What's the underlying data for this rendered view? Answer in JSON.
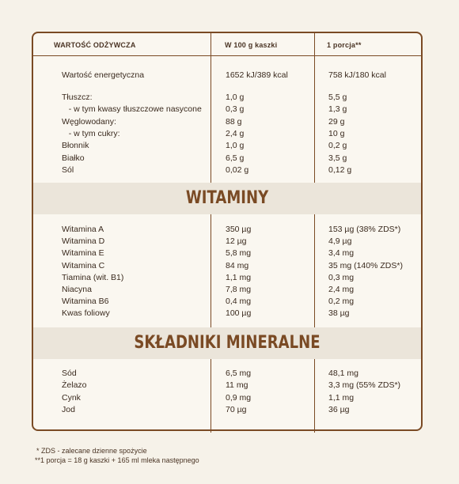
{
  "header": {
    "col_name": "WARTOŚĆ ODŻYWCZA",
    "col_100g": "W 100 g kaszki",
    "col_portion": "1 porcja**"
  },
  "energy": {
    "label": "Wartość energetyczna",
    "v100": "1652 kJ/389 kcal",
    "vp": "758 kJ/180 kcal"
  },
  "nutrients": [
    {
      "label": "Tłuszcz:",
      "v100": "1,0 g",
      "vp": "5,5 g"
    },
    {
      "label": "   - w tym kwasy tłuszczowe nasycone",
      "v100": "0,3 g",
      "vp": "1,3 g"
    },
    {
      "label": "Węglowodany:",
      "v100": "88 g",
      "vp": "29 g"
    },
    {
      "label": "   - w tym cukry:",
      "v100": "2,4 g",
      "vp": "10 g"
    },
    {
      "label": "Błonnik",
      "v100": "1,0 g",
      "vp": "0,2 g"
    },
    {
      "label": "Białko",
      "v100": "6,5 g",
      "vp": "3,5 g"
    },
    {
      "label": "Sól",
      "v100": "0,02 g",
      "vp": "0,12 g"
    }
  ],
  "vitamins_title": "WITAMINY",
  "vitamins": [
    {
      "label": "Witamina A",
      "v100": "350 µg",
      "vp": "153 µg (38% ZDS*)"
    },
    {
      "label": "Witamina D",
      "v100": "12 µg",
      "vp": "4,9 µg"
    },
    {
      "label": "Witamina E",
      "v100": "5,8 mg",
      "vp": "3,4 mg"
    },
    {
      "label": "Witamina C",
      "v100": "84 mg",
      "vp": "35 mg (140% ZDS*)"
    },
    {
      "label": "Tiamina (wit. B1)",
      "v100": "1,1 mg",
      "vp": "0,3 mg"
    },
    {
      "label": "Niacyna",
      "v100": "7,8 mg",
      "vp": "2,4 mg"
    },
    {
      "label": "Witamina B6",
      "v100": "0,4 mg",
      "vp": "0,2 mg"
    },
    {
      "label": "Kwas foliowy",
      "v100": "100 µg",
      "vp": "38 µg"
    }
  ],
  "minerals_title": "SKŁADNIKI MINERALNE",
  "minerals": [
    {
      "label": "Sód",
      "v100": "6,5 mg",
      "vp": "48,1 mg"
    },
    {
      "label": "Żelazo",
      "v100": "11 mg",
      "vp": "3,3 mg (55% ZDS*)"
    },
    {
      "label": "Cynk",
      "v100": "0,9 mg",
      "vp": "1,1 mg"
    },
    {
      "label": "Jod",
      "v100": "70 µg",
      "vp": "36 µg"
    }
  ],
  "footnotes": {
    "zds": "*  ZDS - zalecane dzienne spożycie",
    "portion": "**1 porcja = 18 g kaszki + 165 ml mleka następnego"
  }
}
